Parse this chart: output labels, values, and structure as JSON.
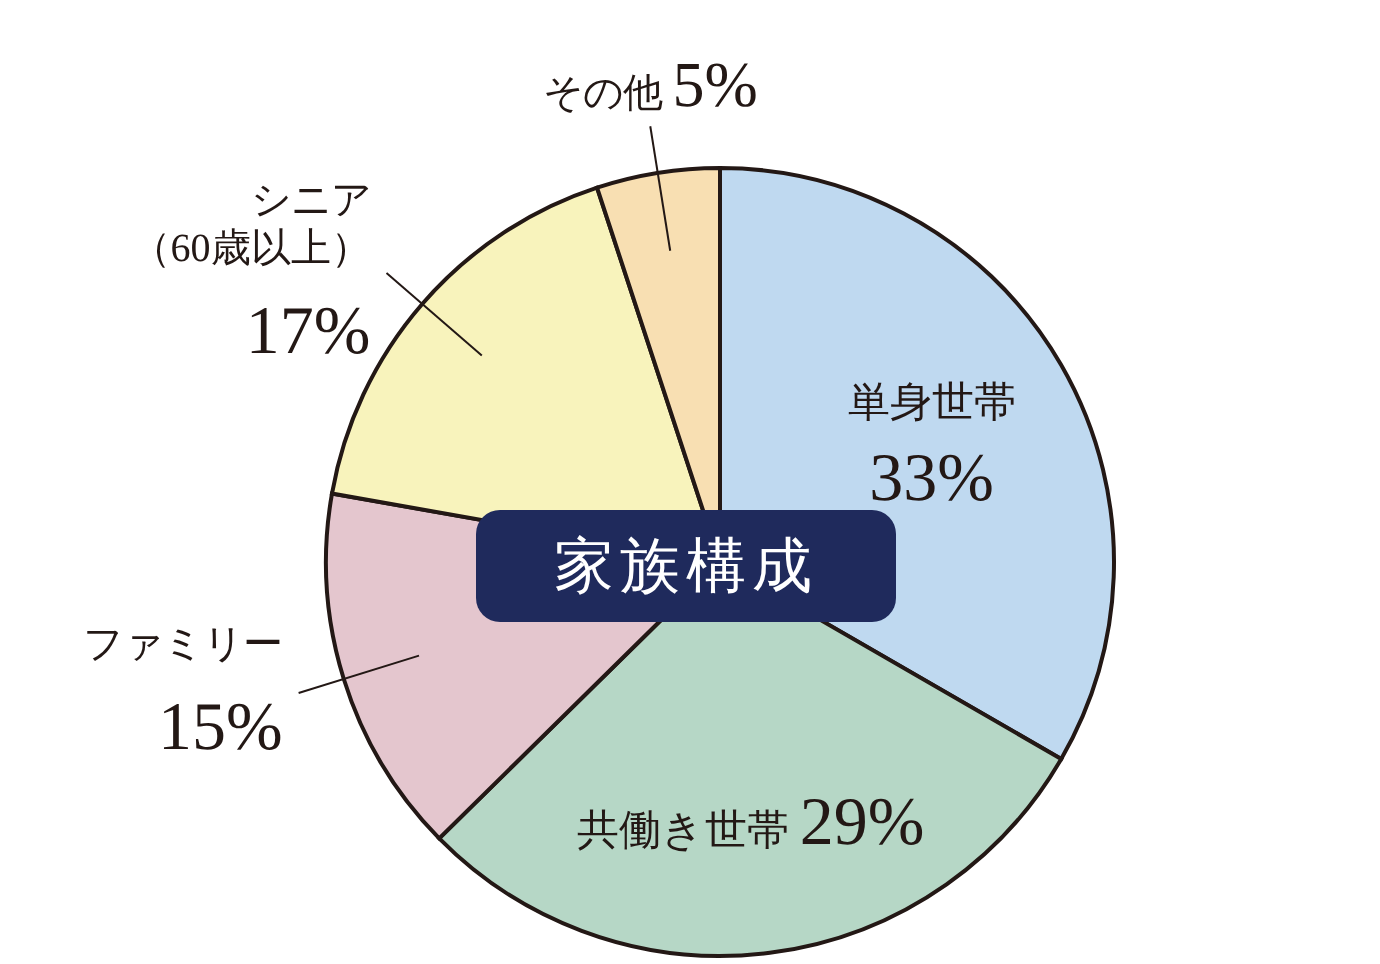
{
  "chart_data": {
    "type": "pie",
    "title": "家族構成",
    "categories": [
      "単身世帯",
      "共働き世帯",
      "ファミリー",
      "シニア（60歳以上）",
      "その他"
    ],
    "values": [
      33,
      29,
      15,
      17,
      5
    ],
    "value_labels": [
      "33%",
      "29%",
      "15%",
      "17%",
      "5%"
    ],
    "colors": [
      "#bfd9f0",
      "#b6d7c6",
      "#e4c6ce",
      "#f8f3bc",
      "#f8dfb2"
    ]
  }
}
